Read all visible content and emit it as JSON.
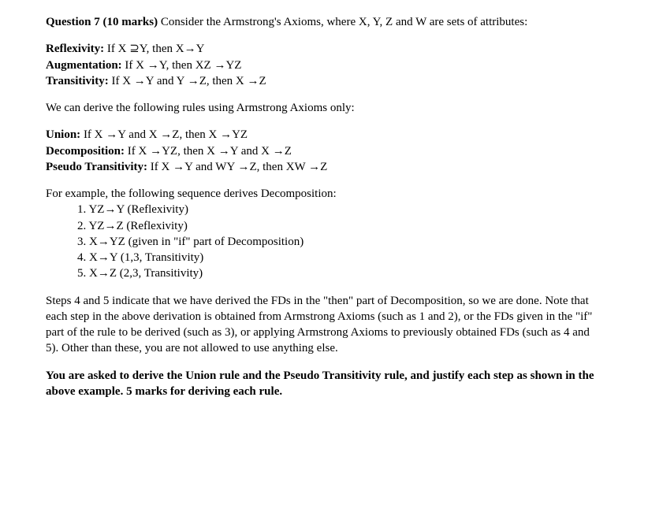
{
  "header": {
    "question_label": "Question 7 (10 marks)",
    "intro_text": " Consider the Armstrong's Axioms, where X, Y, Z and W are sets of attributes:"
  },
  "axioms": {
    "reflexivity_label": "Reflexivity:",
    "reflexivity_text": " If  X ⊇Y, then X→Y",
    "augmentation_label": "Augmentation:",
    "augmentation_text": " If  X →Y, then XZ →YZ",
    "transitivity_label": "Transitivity:",
    "transitivity_text": " If   X →Y and Y →Z, then X →Z"
  },
  "derive_intro": "We can derive the following rules using Armstrong Axioms only:",
  "rules": {
    "union_label": "Union:",
    "union_text": " If  X →Y and X →Z, then X →YZ",
    "decomposition_label": "Decomposition:",
    "decomposition_text": " If  X →YZ, then X →Y and X →Z",
    "pseudo_label": "Pseudo Transitivity:",
    "pseudo_text": " If X →Y and WY →Z, then XW →Z"
  },
  "example_intro": "For example, the following sequence derives Decomposition:",
  "steps": [
    "1.   YZ→Y (Reflexivity)",
    "2.   YZ→Z (Reflexivity)",
    "3.   X→YZ (given in \"if\" part of Decomposition)",
    "4.   X→Y (1,3, Transitivity)",
    "5.   X→Z (2,3, Transitivity)"
  ],
  "explanation": "Steps 4 and 5 indicate that we have derived the FDs in the \"then\" part of Decomposition, so we are done. Note that each step in the above derivation is obtained from Armstrong Axioms (such as 1 and 2), or the FDs given in the \"if\" part of the rule to be derived (such as 3), or applying Armstrong Axioms to previously obtained FDs (such as 4 and 5). Other than these, you are not allowed to use anything else.",
  "task": "You are asked to derive the Union rule and the Pseudo Transitivity rule, and justify each step as shown in the above example. 5 marks for deriving each rule."
}
